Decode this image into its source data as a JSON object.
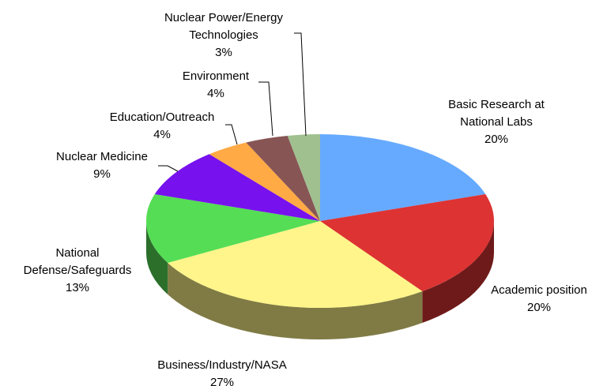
{
  "chart_data": {
    "type": "pie3d",
    "categories": [
      "Basic Research at National Labs",
      "Academic position",
      "Business/Industry/NASA",
      "National Defense/Safeguards",
      "Nuclear Medicine",
      "Education/Outreach",
      "Environment",
      "Nuclear Power/Energy Technologies"
    ],
    "values": [
      20,
      20,
      27,
      13,
      9,
      4,
      4,
      3
    ],
    "value_labels": [
      "20%",
      "20%",
      "27%",
      "13%",
      "9%",
      "4%",
      "4%",
      "3%"
    ],
    "colors": [
      "#66aaff",
      "#dd3333",
      "#fff58a",
      "#55dd55",
      "#7711ee",
      "#ffaa44",
      "#885555",
      "#a0c090"
    ]
  }
}
